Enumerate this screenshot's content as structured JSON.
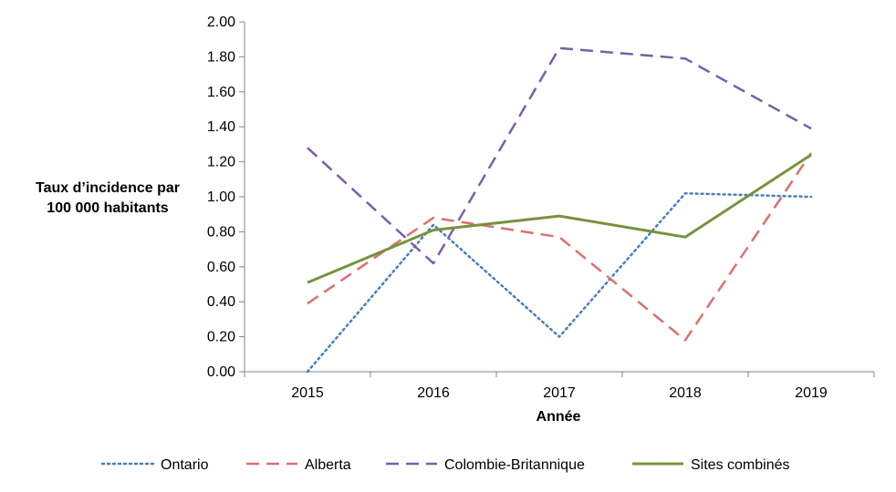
{
  "chart_data": {
    "type": "line",
    "x": [
      "2015",
      "2016",
      "2017",
      "2018",
      "2019"
    ],
    "xlabel": "Année",
    "ylabel_lines": [
      "Taux d’incidence par",
      "100 000 habitants"
    ],
    "ylim": [
      0,
      2
    ],
    "y_ticks": [
      "0.00",
      "0.20",
      "0.40",
      "0.60",
      "0.80",
      "1.00",
      "1.20",
      "1.40",
      "1.60",
      "1.80",
      "2.00"
    ],
    "grid": false,
    "legend_position": "bottom",
    "series": [
      {
        "name": "Ontario",
        "values": [
          0.0,
          0.84,
          0.2,
          1.02,
          1.0
        ],
        "color": "#4a7ebb",
        "style": "dotted"
      },
      {
        "name": "Alberta",
        "values": [
          0.39,
          0.88,
          0.77,
          0.18,
          1.25
        ],
        "color": "#d9716f",
        "style": "dashed"
      },
      {
        "name": "Colombie-Britannique",
        "values": [
          1.28,
          0.62,
          1.85,
          1.79,
          1.39
        ],
        "color": "#7b5ea7",
        "style": "dashed"
      },
      {
        "name": "Sites combinés",
        "values": [
          0.51,
          0.81,
          0.89,
          0.77,
          1.24
        ],
        "color": "#77933c",
        "style": "solid"
      }
    ]
  }
}
